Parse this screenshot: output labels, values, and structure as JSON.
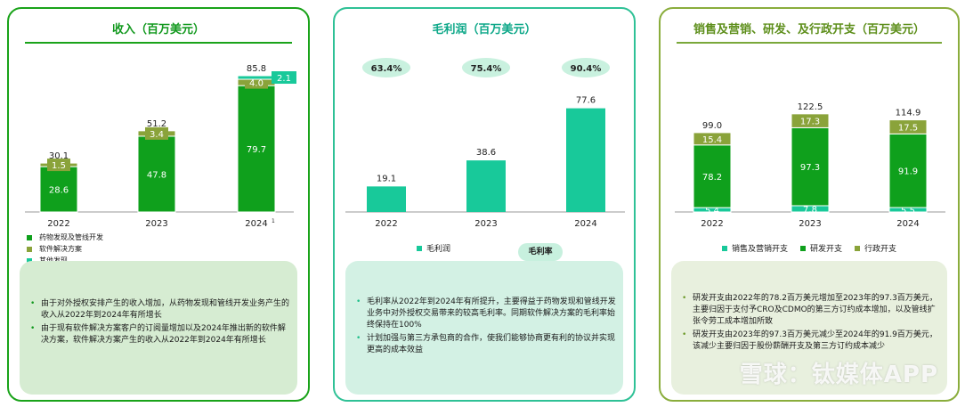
{
  "colors": {
    "dark_green": "#0fa01c",
    "olive": "#8aa33a",
    "teal": "#18c99a",
    "margin_pill": "#c9f1df"
  },
  "revenue": {
    "title": "收入（百万美元）",
    "legend": [
      "药物发现及管线开发",
      "软件解决方案",
      "其他发现"
    ],
    "notes": [
      "由于对外授权安排产生的收入增加，从药物发现和管线开发业务产生的收入从2022年到2024年有所增长",
      "由于现有软件解决方案客户的订阅量增加以及2024年推出新的软件解决方案，软件解决方案产生的收入从2022年到2024年有所增长"
    ],
    "footnote_mark": "1"
  },
  "gross": {
    "title": "毛利润（百万美元）",
    "legend_bar": "毛利润",
    "legend_margin": "毛利率",
    "notes": [
      "毛利率从2022年到2024年有所提升，主要得益于药物发现和管线开发业务中对外授权交易带来的较高毛利率。同期软件解决方案的毛利率始终保持在100%",
      "计划加强与第三方承包商的合作，使我们能够协商更有利的协议并实现更高的成本效益"
    ]
  },
  "expense": {
    "title": "销售及营销、研发、及行政开支（百万美元）",
    "legend": [
      "销售及营销开支",
      "研发开支",
      "行政开支"
    ],
    "notes": [
      "研发开支由2022年的78.2百万美元增加至2023年的97.3百万美元，主要归因于支付予CRO及CDMO的第三方订约成本增加，以及管线扩张令劳工成本增加所致",
      "研发开支由2023年的97.3百万美元减少至2024年的91.9百万美元，该减少主要归因于股份薪酬开支及第三方订约成本减少"
    ]
  },
  "watermark": "雪球：钛媒体APP",
  "chart_data": [
    {
      "type": "bar",
      "stacked": true,
      "title": "收入（百万美元）",
      "categories": [
        "2022",
        "2023",
        "2024"
      ],
      "series": [
        {
          "name": "药物发现及管线开发",
          "values": [
            28.6,
            47.8,
            79.7
          ],
          "color": "#0fa01c"
        },
        {
          "name": "软件解决方案",
          "values": [
            1.5,
            3.4,
            4.0
          ],
          "color": "#8aa33a"
        },
        {
          "name": "其他发现",
          "values": [
            0.0,
            0.0,
            2.1
          ],
          "color": "#18c99a"
        }
      ],
      "totals": [
        30.1,
        51.2,
        85.8
      ],
      "legend": "bottom-left"
    },
    {
      "type": "bar",
      "title": "毛利润（百万美元）",
      "categories": [
        "2022",
        "2023",
        "2024"
      ],
      "series": [
        {
          "name": "毛利润",
          "values": [
            19.1,
            38.6,
            77.6
          ],
          "color": "#18c99a"
        }
      ],
      "margin_labels": [
        "63.4%",
        "75.4%",
        "90.4%"
      ],
      "legend": "bottom"
    },
    {
      "type": "bar",
      "stacked": true,
      "title": "销售及营销、研发、及行政开支（百万美元）",
      "categories": [
        "2022",
        "2023",
        "2024"
      ],
      "series": [
        {
          "name": "销售及营销开支",
          "values": [
            5.4,
            7.8,
            5.5
          ],
          "color": "#18c99a"
        },
        {
          "name": "研发开支",
          "values": [
            78.2,
            97.3,
            91.9
          ],
          "color": "#0fa01c"
        },
        {
          "name": "行政开支",
          "values": [
            15.4,
            17.3,
            17.5
          ],
          "color": "#8aa33a"
        }
      ],
      "totals": [
        99.0,
        122.5,
        114.9
      ],
      "legend": "bottom"
    }
  ]
}
